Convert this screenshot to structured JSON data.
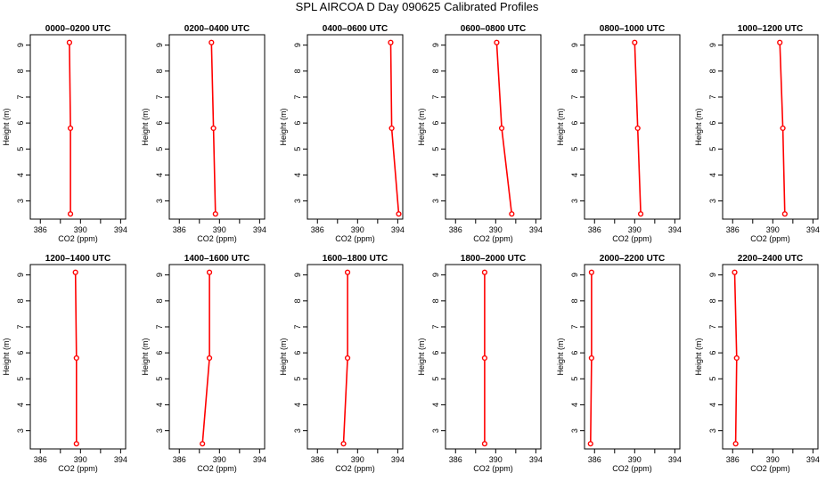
{
  "figure": {
    "title": "SPL AIRCOA D  Day 090625  Calibrated Profiles"
  },
  "colors": {
    "series": "#ff0000",
    "axis": "#000000"
  },
  "chart_data": [
    {
      "type": "line",
      "title": "0000–0200 UTC",
      "xlabel": "CO2 (ppm)",
      "ylabel": "Height (m)",
      "xlim": [
        385,
        394.5
      ],
      "ylim": [
        2.3,
        9.4
      ],
      "x_ticks": [
        386,
        388,
        390,
        392,
        394
      ],
      "y_ticks": [
        3,
        4,
        5,
        6,
        7,
        8,
        9
      ],
      "x_tick_labels": [
        "386",
        "",
        "390",
        "",
        "394"
      ],
      "y_tick_labels": [
        "3",
        "4",
        "5",
        "6",
        "7",
        "8",
        "9"
      ],
      "points": [
        {
          "x": 389.0,
          "y": 2.5
        },
        {
          "x": 389.0,
          "y": 5.8
        },
        {
          "x": 388.9,
          "y": 9.1
        }
      ]
    },
    {
      "type": "line",
      "title": "0200–0400 UTC",
      "xlabel": "CO2 (ppm)",
      "ylabel": "Height (m)",
      "xlim": [
        385,
        394.5
      ],
      "ylim": [
        2.3,
        9.4
      ],
      "x_ticks": [
        386,
        388,
        390,
        392,
        394
      ],
      "y_ticks": [
        3,
        4,
        5,
        6,
        7,
        8,
        9
      ],
      "x_tick_labels": [
        "386",
        "",
        "390",
        "",
        "394"
      ],
      "y_tick_labels": [
        "3",
        "4",
        "5",
        "6",
        "7",
        "8",
        "9"
      ],
      "points": [
        {
          "x": 389.6,
          "y": 2.5
        },
        {
          "x": 389.4,
          "y": 5.8
        },
        {
          "x": 389.2,
          "y": 9.1
        }
      ]
    },
    {
      "type": "line",
      "title": "0400–0600 UTC",
      "xlabel": "CO2 (ppm)",
      "ylabel": "Height (m)",
      "xlim": [
        385,
        394.5
      ],
      "ylim": [
        2.3,
        9.4
      ],
      "x_ticks": [
        386,
        388,
        390,
        392,
        394
      ],
      "y_ticks": [
        3,
        4,
        5,
        6,
        7,
        8,
        9
      ],
      "x_tick_labels": [
        "386",
        "",
        "390",
        "",
        "394"
      ],
      "y_tick_labels": [
        "3",
        "4",
        "5",
        "6",
        "7",
        "8",
        "9"
      ],
      "points": [
        {
          "x": 394.1,
          "y": 2.5
        },
        {
          "x": 393.4,
          "y": 5.8
        },
        {
          "x": 393.3,
          "y": 9.1
        }
      ]
    },
    {
      "type": "line",
      "title": "0600–0800 UTC",
      "xlabel": "CO2 (ppm)",
      "ylabel": "Height (m)",
      "xlim": [
        385,
        394.5
      ],
      "ylim": [
        2.3,
        9.4
      ],
      "x_ticks": [
        386,
        388,
        390,
        392,
        394
      ],
      "y_ticks": [
        3,
        4,
        5,
        6,
        7,
        8,
        9
      ],
      "x_tick_labels": [
        "386",
        "",
        "390",
        "",
        "394"
      ],
      "y_tick_labels": [
        "3",
        "4",
        "5",
        "6",
        "7",
        "8",
        "9"
      ],
      "points": [
        {
          "x": 391.6,
          "y": 2.5
        },
        {
          "x": 390.6,
          "y": 5.8
        },
        {
          "x": 390.1,
          "y": 9.1
        }
      ]
    },
    {
      "type": "line",
      "title": "0800–1000 UTC",
      "xlabel": "CO2 (ppm)",
      "ylabel": "Height (m)",
      "xlim": [
        385,
        394.5
      ],
      "ylim": [
        2.3,
        9.4
      ],
      "x_ticks": [
        386,
        388,
        390,
        392,
        394
      ],
      "y_ticks": [
        3,
        4,
        5,
        6,
        7,
        8,
        9
      ],
      "x_tick_labels": [
        "386",
        "",
        "390",
        "",
        "394"
      ],
      "y_tick_labels": [
        "3",
        "4",
        "5",
        "6",
        "7",
        "8",
        "9"
      ],
      "points": [
        {
          "x": 390.6,
          "y": 2.5
        },
        {
          "x": 390.3,
          "y": 5.8
        },
        {
          "x": 390.0,
          "y": 9.1
        }
      ]
    },
    {
      "type": "line",
      "title": "1000–1200 UTC",
      "xlabel": "CO2 (ppm)",
      "ylabel": "Height (m)",
      "xlim": [
        385,
        394.5
      ],
      "ylim": [
        2.3,
        9.4
      ],
      "x_ticks": [
        386,
        388,
        390,
        392,
        394
      ],
      "y_ticks": [
        3,
        4,
        5,
        6,
        7,
        8,
        9
      ],
      "x_tick_labels": [
        "386",
        "",
        "390",
        "",
        "394"
      ],
      "y_tick_labels": [
        "3",
        "4",
        "5",
        "6",
        "7",
        "8",
        "9"
      ],
      "points": [
        {
          "x": 391.2,
          "y": 2.5
        },
        {
          "x": 391.0,
          "y": 5.8
        },
        {
          "x": 390.7,
          "y": 9.1
        }
      ]
    },
    {
      "type": "line",
      "title": "1200–1400 UTC",
      "xlabel": "CO2 (ppm)",
      "ylabel": "Height (m)",
      "xlim": [
        385,
        394.5
      ],
      "ylim": [
        2.3,
        9.4
      ],
      "x_ticks": [
        386,
        388,
        390,
        392,
        394
      ],
      "y_ticks": [
        3,
        4,
        5,
        6,
        7,
        8,
        9
      ],
      "x_tick_labels": [
        "386",
        "",
        "390",
        "",
        "394"
      ],
      "y_tick_labels": [
        "3",
        "4",
        "5",
        "6",
        "7",
        "8",
        "9"
      ],
      "points": [
        {
          "x": 389.6,
          "y": 2.5
        },
        {
          "x": 389.6,
          "y": 5.8
        },
        {
          "x": 389.5,
          "y": 9.1
        }
      ]
    },
    {
      "type": "line",
      "title": "1400–1600 UTC",
      "xlabel": "CO2 (ppm)",
      "ylabel": "Height (m)",
      "xlim": [
        385,
        394.5
      ],
      "ylim": [
        2.3,
        9.4
      ],
      "x_ticks": [
        386,
        388,
        390,
        392,
        394
      ],
      "y_ticks": [
        3,
        4,
        5,
        6,
        7,
        8,
        9
      ],
      "x_tick_labels": [
        "386",
        "",
        "390",
        "",
        "394"
      ],
      "y_tick_labels": [
        "3",
        "4",
        "5",
        "6",
        "7",
        "8",
        "9"
      ],
      "points": [
        {
          "x": 388.3,
          "y": 2.5
        },
        {
          "x": 389.0,
          "y": 5.8
        },
        {
          "x": 389.0,
          "y": 9.1
        }
      ]
    },
    {
      "type": "line",
      "title": "1600–1800 UTC",
      "xlabel": "CO2 (ppm)",
      "ylabel": "Height (m)",
      "xlim": [
        385,
        394.5
      ],
      "ylim": [
        2.3,
        9.4
      ],
      "x_ticks": [
        386,
        388,
        390,
        392,
        394
      ],
      "y_ticks": [
        3,
        4,
        5,
        6,
        7,
        8,
        9
      ],
      "x_tick_labels": [
        "386",
        "",
        "390",
        "",
        "394"
      ],
      "y_tick_labels": [
        "3",
        "4",
        "5",
        "6",
        "7",
        "8",
        "9"
      ],
      "points": [
        {
          "x": 388.6,
          "y": 2.5
        },
        {
          "x": 389.0,
          "y": 5.8
        },
        {
          "x": 389.0,
          "y": 9.1
        }
      ]
    },
    {
      "type": "line",
      "title": "1800–2000 UTC",
      "xlabel": "CO2 (ppm)",
      "ylabel": "Height (m)",
      "xlim": [
        385,
        394.5
      ],
      "ylim": [
        2.3,
        9.4
      ],
      "x_ticks": [
        386,
        388,
        390,
        392,
        394
      ],
      "y_ticks": [
        3,
        4,
        5,
        6,
        7,
        8,
        9
      ],
      "x_tick_labels": [
        "386",
        "",
        "390",
        "",
        "394"
      ],
      "y_tick_labels": [
        "3",
        "4",
        "5",
        "6",
        "7",
        "8",
        "9"
      ],
      "points": [
        {
          "x": 388.9,
          "y": 2.5
        },
        {
          "x": 388.9,
          "y": 5.8
        },
        {
          "x": 388.9,
          "y": 9.1
        }
      ]
    },
    {
      "type": "line",
      "title": "2000–2200 UTC",
      "xlabel": "CO2 (ppm)",
      "ylabel": "Height (m)",
      "xlim": [
        385,
        394.5
      ],
      "ylim": [
        2.3,
        9.4
      ],
      "x_ticks": [
        386,
        388,
        390,
        392,
        394
      ],
      "y_ticks": [
        3,
        4,
        5,
        6,
        7,
        8,
        9
      ],
      "x_tick_labels": [
        "386",
        "",
        "390",
        "",
        "394"
      ],
      "y_tick_labels": [
        "3",
        "4",
        "5",
        "6",
        "7",
        "8",
        "9"
      ],
      "points": [
        {
          "x": 385.6,
          "y": 2.5
        },
        {
          "x": 385.7,
          "y": 5.8
        },
        {
          "x": 385.7,
          "y": 9.1
        }
      ]
    },
    {
      "type": "line",
      "title": "2200–2400 UTC",
      "xlabel": "CO2 (ppm)",
      "ylabel": "Height (m)",
      "xlim": [
        385,
        394.5
      ],
      "ylim": [
        2.3,
        9.4
      ],
      "x_ticks": [
        386,
        388,
        390,
        392,
        394
      ],
      "y_ticks": [
        3,
        4,
        5,
        6,
        7,
        8,
        9
      ],
      "x_tick_labels": [
        "386",
        "",
        "390",
        "",
        "394"
      ],
      "y_tick_labels": [
        "3",
        "4",
        "5",
        "6",
        "7",
        "8",
        "9"
      ],
      "points": [
        {
          "x": 386.3,
          "y": 2.5
        },
        {
          "x": 386.4,
          "y": 5.8
        },
        {
          "x": 386.2,
          "y": 9.1
        }
      ]
    }
  ]
}
